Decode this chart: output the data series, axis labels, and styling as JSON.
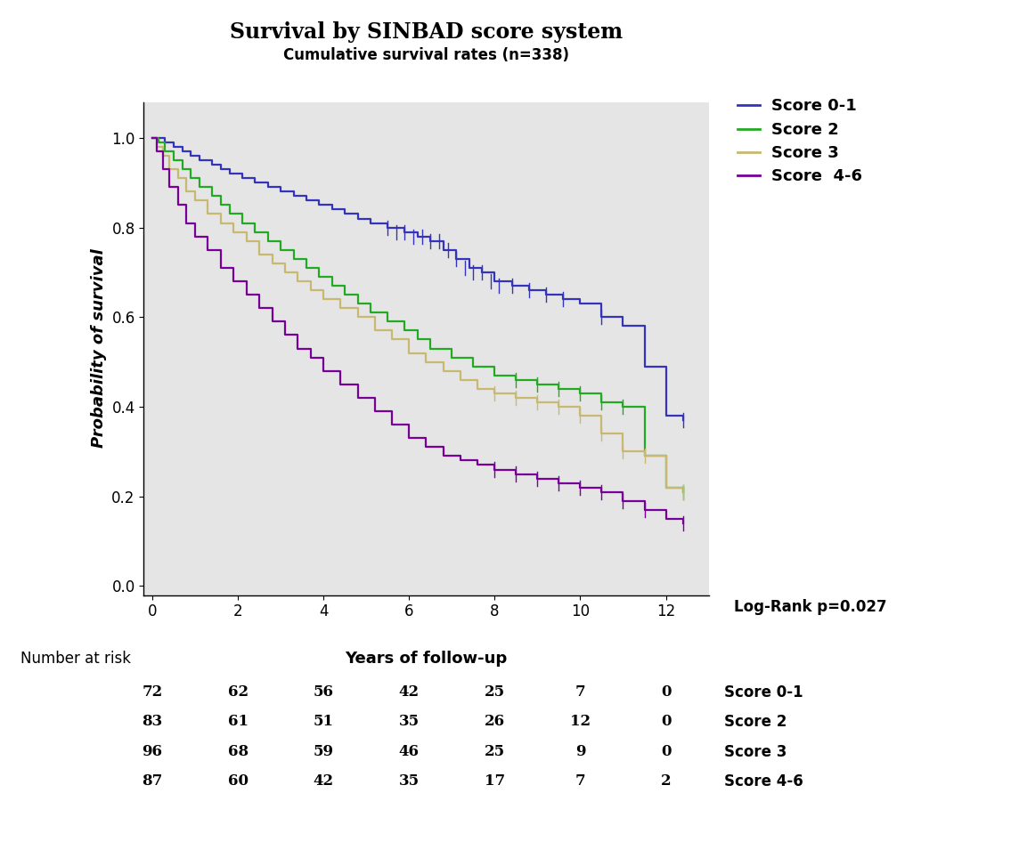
{
  "title": "Survival by SINBAD score system",
  "subtitle": "Cumulative survival rates (n=338)",
  "xlabel": "Years of follow-up",
  "ylabel": "Probability of survival",
  "logrank_text": "Log-Rank p=0.027",
  "number_at_risk_label": "Number at risk",
  "xlim": [
    -0.2,
    13.0
  ],
  "ylim": [
    -0.02,
    1.08
  ],
  "xticks": [
    0,
    2,
    4,
    6,
    8,
    10,
    12
  ],
  "yticks": [
    0.0,
    0.2,
    0.4,
    0.6,
    0.8,
    1.0
  ],
  "background_color": "#e5e5e5",
  "legend_labels": [
    "Score 0-1",
    "Score 2",
    "Score 3",
    "Score  4-6"
  ],
  "colors": {
    "score01": "#3333bb",
    "score2": "#22aa22",
    "score3": "#c8b870",
    "score46": "#770099"
  },
  "number_at_risk": {
    "Score 0-1": [
      72,
      62,
      56,
      42,
      25,
      7,
      0
    ],
    "Score 2": [
      83,
      61,
      51,
      35,
      26,
      12,
      0
    ],
    "Score 3": [
      96,
      68,
      59,
      46,
      25,
      9,
      0
    ],
    "Score 4-6": [
      87,
      60,
      42,
      35,
      17,
      7,
      2
    ]
  },
  "score01_x": [
    0,
    0.15,
    0.3,
    0.5,
    0.7,
    0.9,
    1.1,
    1.4,
    1.6,
    1.8,
    2.1,
    2.4,
    2.7,
    3.0,
    3.3,
    3.6,
    3.9,
    4.2,
    4.5,
    4.8,
    5.1,
    5.5,
    5.9,
    6.2,
    6.5,
    6.8,
    7.1,
    7.4,
    7.7,
    8.0,
    8.4,
    8.8,
    9.2,
    9.6,
    10.0,
    10.5,
    11.0,
    11.5,
    12.0,
    12.4
  ],
  "score01_y": [
    1.0,
    1.0,
    0.99,
    0.98,
    0.97,
    0.96,
    0.95,
    0.94,
    0.93,
    0.92,
    0.91,
    0.9,
    0.89,
    0.88,
    0.87,
    0.86,
    0.85,
    0.84,
    0.83,
    0.82,
    0.81,
    0.8,
    0.79,
    0.78,
    0.77,
    0.75,
    0.73,
    0.71,
    0.7,
    0.68,
    0.67,
    0.66,
    0.65,
    0.64,
    0.63,
    0.6,
    0.58,
    0.49,
    0.38,
    0.37
  ],
  "score2_x": [
    0,
    0.15,
    0.3,
    0.5,
    0.7,
    0.9,
    1.1,
    1.4,
    1.6,
    1.8,
    2.1,
    2.4,
    2.7,
    3.0,
    3.3,
    3.6,
    3.9,
    4.2,
    4.5,
    4.8,
    5.1,
    5.5,
    5.9,
    6.2,
    6.5,
    7.0,
    7.5,
    8.0,
    8.5,
    9.0,
    9.5,
    10.0,
    10.5,
    11.0,
    11.5,
    12.0,
    12.4
  ],
  "score2_y": [
    1.0,
    0.99,
    0.97,
    0.95,
    0.93,
    0.91,
    0.89,
    0.87,
    0.85,
    0.83,
    0.81,
    0.79,
    0.77,
    0.75,
    0.73,
    0.71,
    0.69,
    0.67,
    0.65,
    0.63,
    0.61,
    0.59,
    0.57,
    0.55,
    0.53,
    0.51,
    0.49,
    0.47,
    0.46,
    0.45,
    0.44,
    0.43,
    0.41,
    0.4,
    0.29,
    0.22,
    0.21
  ],
  "score3_x": [
    0,
    0.1,
    0.25,
    0.4,
    0.6,
    0.8,
    1.0,
    1.3,
    1.6,
    1.9,
    2.2,
    2.5,
    2.8,
    3.1,
    3.4,
    3.7,
    4.0,
    4.4,
    4.8,
    5.2,
    5.6,
    6.0,
    6.4,
    6.8,
    7.2,
    7.6,
    8.0,
    8.5,
    9.0,
    9.5,
    10.0,
    10.5,
    11.0,
    11.5,
    12.0,
    12.4
  ],
  "score3_y": [
    1.0,
    0.98,
    0.96,
    0.93,
    0.91,
    0.88,
    0.86,
    0.83,
    0.81,
    0.79,
    0.77,
    0.74,
    0.72,
    0.7,
    0.68,
    0.66,
    0.64,
    0.62,
    0.6,
    0.57,
    0.55,
    0.52,
    0.5,
    0.48,
    0.46,
    0.44,
    0.43,
    0.42,
    0.41,
    0.4,
    0.38,
    0.34,
    0.3,
    0.29,
    0.22,
    0.21
  ],
  "score46_x": [
    0,
    0.1,
    0.25,
    0.4,
    0.6,
    0.8,
    1.0,
    1.3,
    1.6,
    1.9,
    2.2,
    2.5,
    2.8,
    3.1,
    3.4,
    3.7,
    4.0,
    4.4,
    4.8,
    5.2,
    5.6,
    6.0,
    6.4,
    6.8,
    7.2,
    7.6,
    8.0,
    8.5,
    9.0,
    9.5,
    10.0,
    10.5,
    11.0,
    11.5,
    12.0,
    12.4
  ],
  "score46_y": [
    1.0,
    0.97,
    0.93,
    0.89,
    0.85,
    0.81,
    0.78,
    0.75,
    0.71,
    0.68,
    0.65,
    0.62,
    0.59,
    0.56,
    0.53,
    0.51,
    0.48,
    0.45,
    0.42,
    0.39,
    0.36,
    0.33,
    0.31,
    0.29,
    0.28,
    0.27,
    0.26,
    0.25,
    0.24,
    0.23,
    0.22,
    0.21,
    0.19,
    0.17,
    0.15,
    0.14
  ],
  "censor01_x": [
    5.5,
    5.7,
    5.9,
    6.1,
    6.3,
    6.5,
    6.7,
    6.9,
    7.1,
    7.3,
    7.5,
    7.7,
    7.9,
    8.1,
    8.4,
    8.8,
    9.2,
    9.6,
    10.5,
    12.4
  ],
  "censor01_y": [
    0.8,
    0.79,
    0.79,
    0.78,
    0.78,
    0.77,
    0.77,
    0.75,
    0.73,
    0.71,
    0.7,
    0.7,
    0.68,
    0.67,
    0.67,
    0.66,
    0.65,
    0.64,
    0.6,
    0.37
  ],
  "censor2_x": [
    8.5,
    9.0,
    9.5,
    10.0,
    10.5,
    11.0,
    12.4
  ],
  "censor2_y": [
    0.46,
    0.45,
    0.44,
    0.43,
    0.41,
    0.4,
    0.21
  ],
  "censor3_x": [
    8.0,
    8.5,
    9.0,
    9.5,
    10.0,
    10.5,
    11.0,
    11.5,
    12.4
  ],
  "censor3_y": [
    0.43,
    0.42,
    0.41,
    0.4,
    0.38,
    0.34,
    0.3,
    0.29,
    0.21
  ],
  "censor46_x": [
    8.0,
    8.5,
    9.0,
    9.5,
    10.0,
    10.5,
    11.0,
    11.5,
    12.4
  ],
  "censor46_y": [
    0.26,
    0.25,
    0.24,
    0.23,
    0.22,
    0.21,
    0.19,
    0.17,
    0.14
  ]
}
